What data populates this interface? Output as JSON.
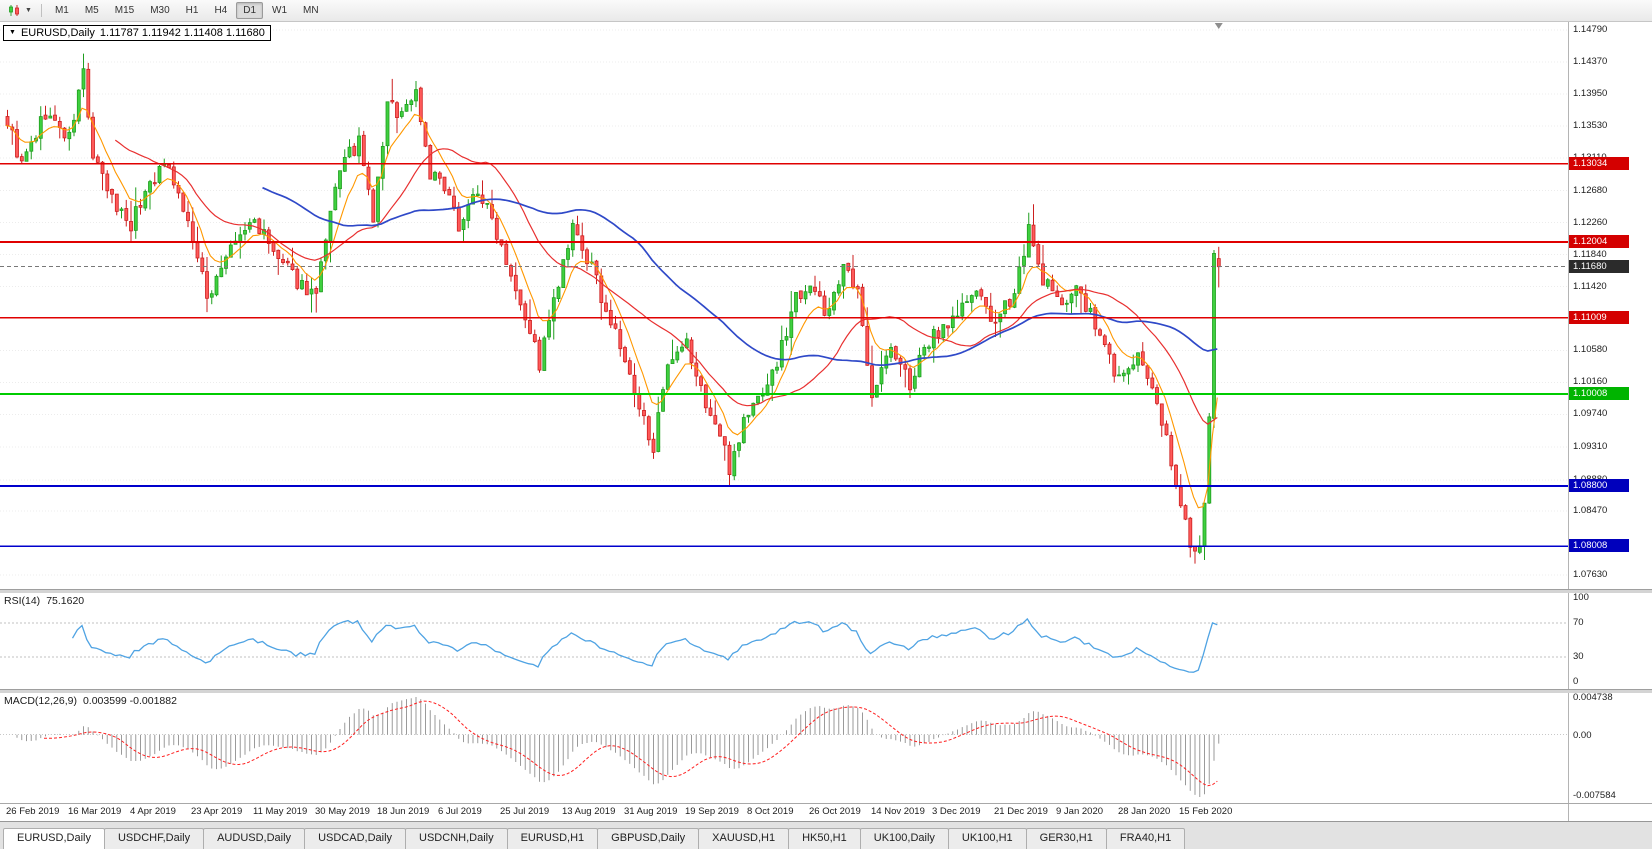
{
  "toolbar": {
    "timeframes": [
      "M1",
      "M5",
      "M15",
      "M30",
      "H1",
      "H4",
      "D1",
      "W1",
      "MN"
    ],
    "active_timeframe": "D1",
    "chart_cursor_icon": "candlestick-chart-icon",
    "dropdown_icon": "chevron-down-icon"
  },
  "chart": {
    "title": "EURUSD,Daily",
    "ohlc": "1.11787 1.11942 1.11408 1.11680"
  },
  "rsi_panel": {
    "label": "RSI(14)",
    "value": "75.1620",
    "axis_ticks": [
      "100",
      "70",
      "30",
      "0"
    ]
  },
  "macd_panel": {
    "label": "MACD(12,26,9)",
    "value": "0.003599 -0.001882",
    "axis_ticks": [
      "0.004738",
      "0.00",
      "-0.007584"
    ]
  },
  "date_axis": [
    "26 Feb 2019",
    "16 Mar 2019",
    "4 Apr 2019",
    "23 Apr 2019",
    "11 May 2019",
    "30 May 2019",
    "18 Jun 2019",
    "6 Jul 2019",
    "25 Jul 2019",
    "13 Aug 2019",
    "31 Aug 2019",
    "19 Sep 2019",
    "8 Oct 2019",
    "26 Oct 2019",
    "14 Nov 2019",
    "3 Dec 2019",
    "21 Dec 2019",
    "9 Jan 2020",
    "28 Jan 2020",
    "15 Feb 2020"
  ],
  "tabs": {
    "active": "EURUSD,Daily",
    "items": [
      "EURUSD,Daily",
      "USDCHF,Daily",
      "AUDUSD,Daily",
      "USDCAD,Daily",
      "USDCNH,Daily",
      "EURUSD,H1",
      "GBPUSD,Daily",
      "XAUUSD,H1",
      "HK50,H1",
      "UK100,Daily",
      "UK100,H1",
      "GER30,H1",
      "FRA40,H1"
    ]
  },
  "chart_data": {
    "type": "candlestick",
    "symbol": "EURUSD",
    "timeframe": "Daily",
    "last_candle": {
      "open": 1.11787,
      "high": 1.11942,
      "low": 1.11408,
      "close": 1.1168
    },
    "price_range": {
      "min": 1.0763,
      "max": 1.1479
    },
    "price_axis_ticks": [
      1.1479,
      1.1437,
      1.1395,
      1.1353,
      1.1311,
      1.1268,
      1.1226,
      1.1184,
      1.1142,
      1.1058,
      1.1016,
      1.0974,
      1.0931,
      1.0888,
      1.0847,
      1.0763
    ],
    "levels": [
      {
        "value": 1.13034,
        "color": "#e00000",
        "badge_color": "#d40000",
        "width": 1.2
      },
      {
        "value": 1.12004,
        "color": "#e00000",
        "badge_color": "#d40000",
        "width": 1.8
      },
      {
        "value": 1.11009,
        "color": "#e00000",
        "badge_color": "#d40000",
        "width": 1.2
      },
      {
        "value": 1.10008,
        "color": "#00cc00",
        "badge_color": "#00b400",
        "width": 1.8
      },
      {
        "value": 1.088,
        "color": "#0000cc",
        "badge_color": "#0000bc",
        "width": 1.8
      },
      {
        "value": 1.08008,
        "color": "#0000cc",
        "badge_color": "#0000bc",
        "width": 1.8
      }
    ],
    "current_price": {
      "value": 1.1168,
      "line_color": "#787878",
      "badge_color": "#2b2b2b"
    },
    "candle_count": 256,
    "label_step": 13,
    "seed": 9,
    "noise": 0.0022,
    "up_stroke": "#1f9e1f",
    "up_fill": "#3fd03f",
    "down_stroke": "#cc1f1f",
    "down_fill": "#ff5a5a",
    "close_anchors": [
      [
        0,
        1.136
      ],
      [
        3,
        1.13
      ],
      [
        8,
        1.137
      ],
      [
        13,
        1.1335
      ],
      [
        16,
        1.1425
      ],
      [
        18,
        1.131
      ],
      [
        22,
        1.1255
      ],
      [
        26,
        1.1225
      ],
      [
        30,
        1.128
      ],
      [
        34,
        1.1305
      ],
      [
        39,
        1.1205
      ],
      [
        42,
        1.1125
      ],
      [
        45,
        1.117
      ],
      [
        48,
        1.12
      ],
      [
        52,
        1.123
      ],
      [
        56,
        1.1185
      ],
      [
        60,
        1.1155
      ],
      [
        65,
        1.113
      ],
      [
        70,
        1.13
      ],
      [
        74,
        1.133
      ],
      [
        77,
        1.123
      ],
      [
        80,
        1.138
      ],
      [
        83,
        1.137
      ],
      [
        86,
        1.14
      ],
      [
        89,
        1.129
      ],
      [
        91,
        1.128
      ],
      [
        95,
        1.1225
      ],
      [
        99,
        1.127
      ],
      [
        103,
        1.1215
      ],
      [
        107,
        1.1145
      ],
      [
        110,
        1.1085
      ],
      [
        112,
        1.104
      ],
      [
        115,
        1.112
      ],
      [
        119,
        1.1215
      ],
      [
        123,
        1.1165
      ],
      [
        127,
        1.1095
      ],
      [
        130,
        1.1045
      ],
      [
        132,
        1.0995
      ],
      [
        136,
        1.0935
      ],
      [
        139,
        1.103
      ],
      [
        143,
        1.1065
      ],
      [
        146,
        1.1005
      ],
      [
        150,
        1.0945
      ],
      [
        152,
        1.0905
      ],
      [
        155,
        1.0965
      ],
      [
        158,
        1.0995
      ],
      [
        162,
        1.104
      ],
      [
        166,
        1.113
      ],
      [
        169,
        1.115
      ],
      [
        172,
        1.1105
      ],
      [
        176,
        1.1165
      ],
      [
        179,
        1.113
      ],
      [
        182,
        1.1005
      ],
      [
        186,
        1.106
      ],
      [
        190,
        1.1015
      ],
      [
        195,
        1.108
      ],
      [
        199,
        1.11
      ],
      [
        203,
        1.113
      ],
      [
        206,
        1.112
      ],
      [
        208,
        1.1085
      ],
      [
        212,
        1.114
      ],
      [
        215,
        1.1215
      ],
      [
        217,
        1.1165
      ],
      [
        221,
        1.112
      ],
      [
        225,
        1.114
      ],
      [
        229,
        1.109
      ],
      [
        234,
        1.102
      ],
      [
        238,
        1.105
      ],
      [
        241,
        1.1
      ],
      [
        244,
        1.095
      ],
      [
        247,
        1.085
      ],
      [
        250,
        1.079
      ],
      [
        251,
        1.0805
      ],
      [
        252,
        1.0855
      ],
      [
        253,
        1.096
      ],
      [
        254,
        1.1175
      ],
      [
        255,
        1.1168
      ]
    ],
    "overrides": {
      "16": {
        "h": 1.1448
      },
      "86": {
        "h": 1.1412
      },
      "119": {
        "h": 1.123
      },
      "152": {
        "l": 1.0879
      },
      "215": {
        "h": 1.1239
      },
      "250": {
        "l": 1.0778
      },
      "255": {
        "o": 1.11787,
        "h": 1.11942,
        "l": 1.11408,
        "c": 1.1168
      }
    },
    "moving_averages": [
      {
        "type": "ema",
        "period": 8,
        "color": "#ff9800",
        "width": 1.1
      },
      {
        "type": "sma",
        "period": 24,
        "color": "#e83030",
        "width": 1.2
      },
      {
        "type": "sma",
        "period": 55,
        "color": "#2f49c8",
        "width": 1.7
      }
    ],
    "indicators": {
      "rsi": {
        "period": 14,
        "current": 75.162,
        "levels": [
          70,
          30
        ],
        "color": "#4fa3e3",
        "range": [
          0,
          100
        ]
      },
      "macd": {
        "fast": 12,
        "slow": 26,
        "signal_period": 9,
        "main": 0.003599,
        "signal": -0.001882,
        "histogram_color": "#9a9a9a",
        "signal_color": "#ff2020"
      }
    }
  }
}
